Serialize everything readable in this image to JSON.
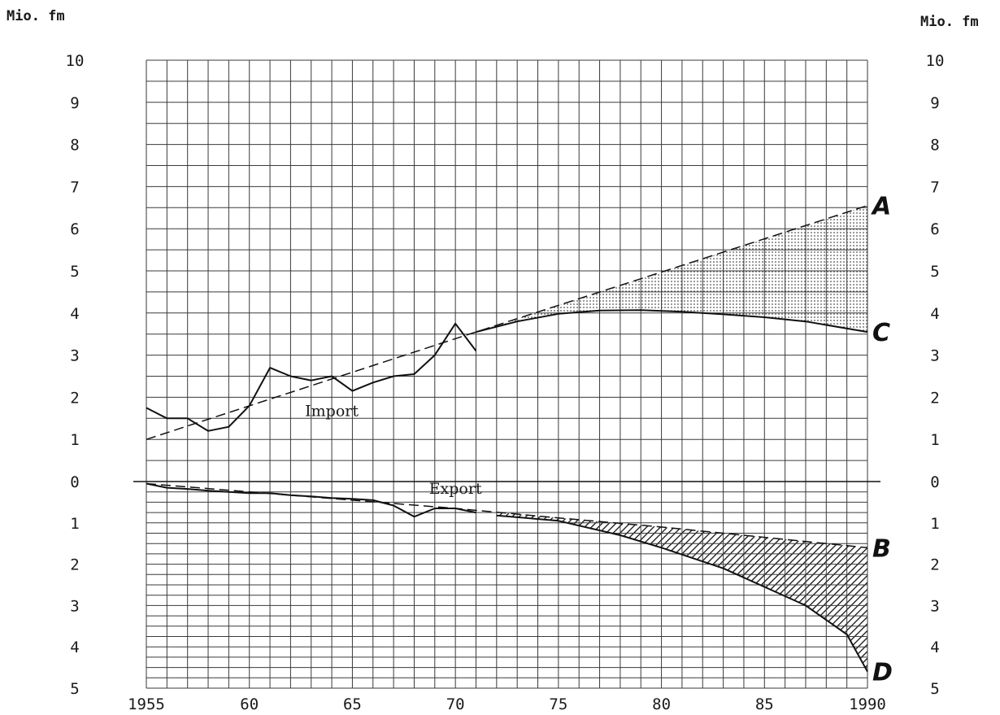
{
  "chart_data": {
    "type": "line",
    "y_unit_left": "Mio. fm",
    "y_unit_right": "Mio. fm",
    "x_ticks": [
      "1955",
      "60",
      "65",
      "70",
      "75",
      "80",
      "85",
      "1990"
    ],
    "x_tick_values": [
      1955,
      1960,
      1965,
      1970,
      1975,
      1980,
      1985,
      1990
    ],
    "xlim": [
      1955,
      1990
    ],
    "import_ticks": [
      "0",
      "1",
      "2",
      "3",
      "4",
      "5",
      "6",
      "7",
      "8",
      "9",
      "10"
    ],
    "export_ticks": [
      "1",
      "2",
      "3",
      "4",
      "5"
    ],
    "import_ylim": [
      0,
      10
    ],
    "export_ylim": [
      0,
      5
    ],
    "grid": true,
    "series": [
      {
        "name": "Import",
        "panel": "import",
        "style": "solid",
        "x": [
          1955,
          1956,
          1957,
          1958,
          1959,
          1960,
          1961,
          1962,
          1963,
          1964,
          1965,
          1966,
          1967,
          1968,
          1969,
          1970,
          1971
        ],
        "y": [
          1.75,
          1.5,
          1.5,
          1.2,
          1.3,
          1.8,
          2.7,
          2.5,
          2.4,
          2.5,
          2.15,
          2.35,
          2.5,
          2.55,
          3.0,
          3.75,
          3.1
        ]
      },
      {
        "name": "Export",
        "panel": "export",
        "style": "solid",
        "x": [
          1955,
          1956,
          1957,
          1958,
          1959,
          1960,
          1961,
          1962,
          1963,
          1964,
          1965,
          1966,
          1967,
          1968,
          1969,
          1970,
          1971
        ],
        "y": [
          0.05,
          0.15,
          0.18,
          0.22,
          0.25,
          0.28,
          0.28,
          0.33,
          0.36,
          0.4,
          0.42,
          0.45,
          0.58,
          0.85,
          0.65,
          0.65,
          0.75
        ]
      },
      {
        "name": "",
        "panel": "import",
        "style": "dashed",
        "x": [
          1955,
          1971,
          1990
        ],
        "y": [
          1.0,
          3.55,
          6.55
        ]
      },
      {
        "name": "",
        "panel": "export",
        "style": "dashed",
        "x": [
          1955,
          1960,
          1965,
          1970,
          1975,
          1980,
          1985,
          1990
        ],
        "y": [
          0.05,
          0.25,
          0.45,
          0.65,
          0.88,
          1.1,
          1.35,
          1.6
        ]
      },
      {
        "name": "",
        "panel": "import",
        "style": "solid",
        "x": [
          1971,
          1973,
          1975,
          1977,
          1979,
          1981,
          1983,
          1985,
          1987,
          1990
        ],
        "y": [
          3.55,
          3.8,
          3.98,
          4.06,
          4.07,
          4.03,
          3.97,
          3.9,
          3.8,
          3.55
        ]
      },
      {
        "name": "",
        "panel": "export",
        "style": "solid",
        "x": [
          1972,
          1975,
          1978,
          1980,
          1983,
          1985,
          1987,
          1989,
          1990
        ],
        "y": [
          0.82,
          0.95,
          1.3,
          1.6,
          2.1,
          2.55,
          3.0,
          3.7,
          4.6
        ]
      }
    ],
    "scenario_labels": [
      {
        "text": "A",
        "panel": "import",
        "x": 1990,
        "y": 6.55
      },
      {
        "text": "C",
        "panel": "import",
        "x": 1990,
        "y": 3.55
      },
      {
        "text": "B",
        "panel": "export",
        "x": 1990,
        "y": 1.6
      },
      {
        "text": "D",
        "panel": "export",
        "x": 1990,
        "y": 4.6
      }
    ],
    "shaded_regions": [
      {
        "between": [
          "A",
          "C"
        ],
        "from_x": 1971,
        "to_x": 1990,
        "fill": "dotted"
      },
      {
        "between": [
          "B",
          "D"
        ],
        "from_x": 1972,
        "to_x": 1990,
        "fill": "hatched"
      }
    ],
    "annotations": [
      {
        "text": "Import",
        "panel": "import",
        "x": 1964,
        "y": 1.55
      },
      {
        "text": "Export",
        "panel": "export",
        "x": 1970,
        "y": 0.3
      }
    ]
  }
}
